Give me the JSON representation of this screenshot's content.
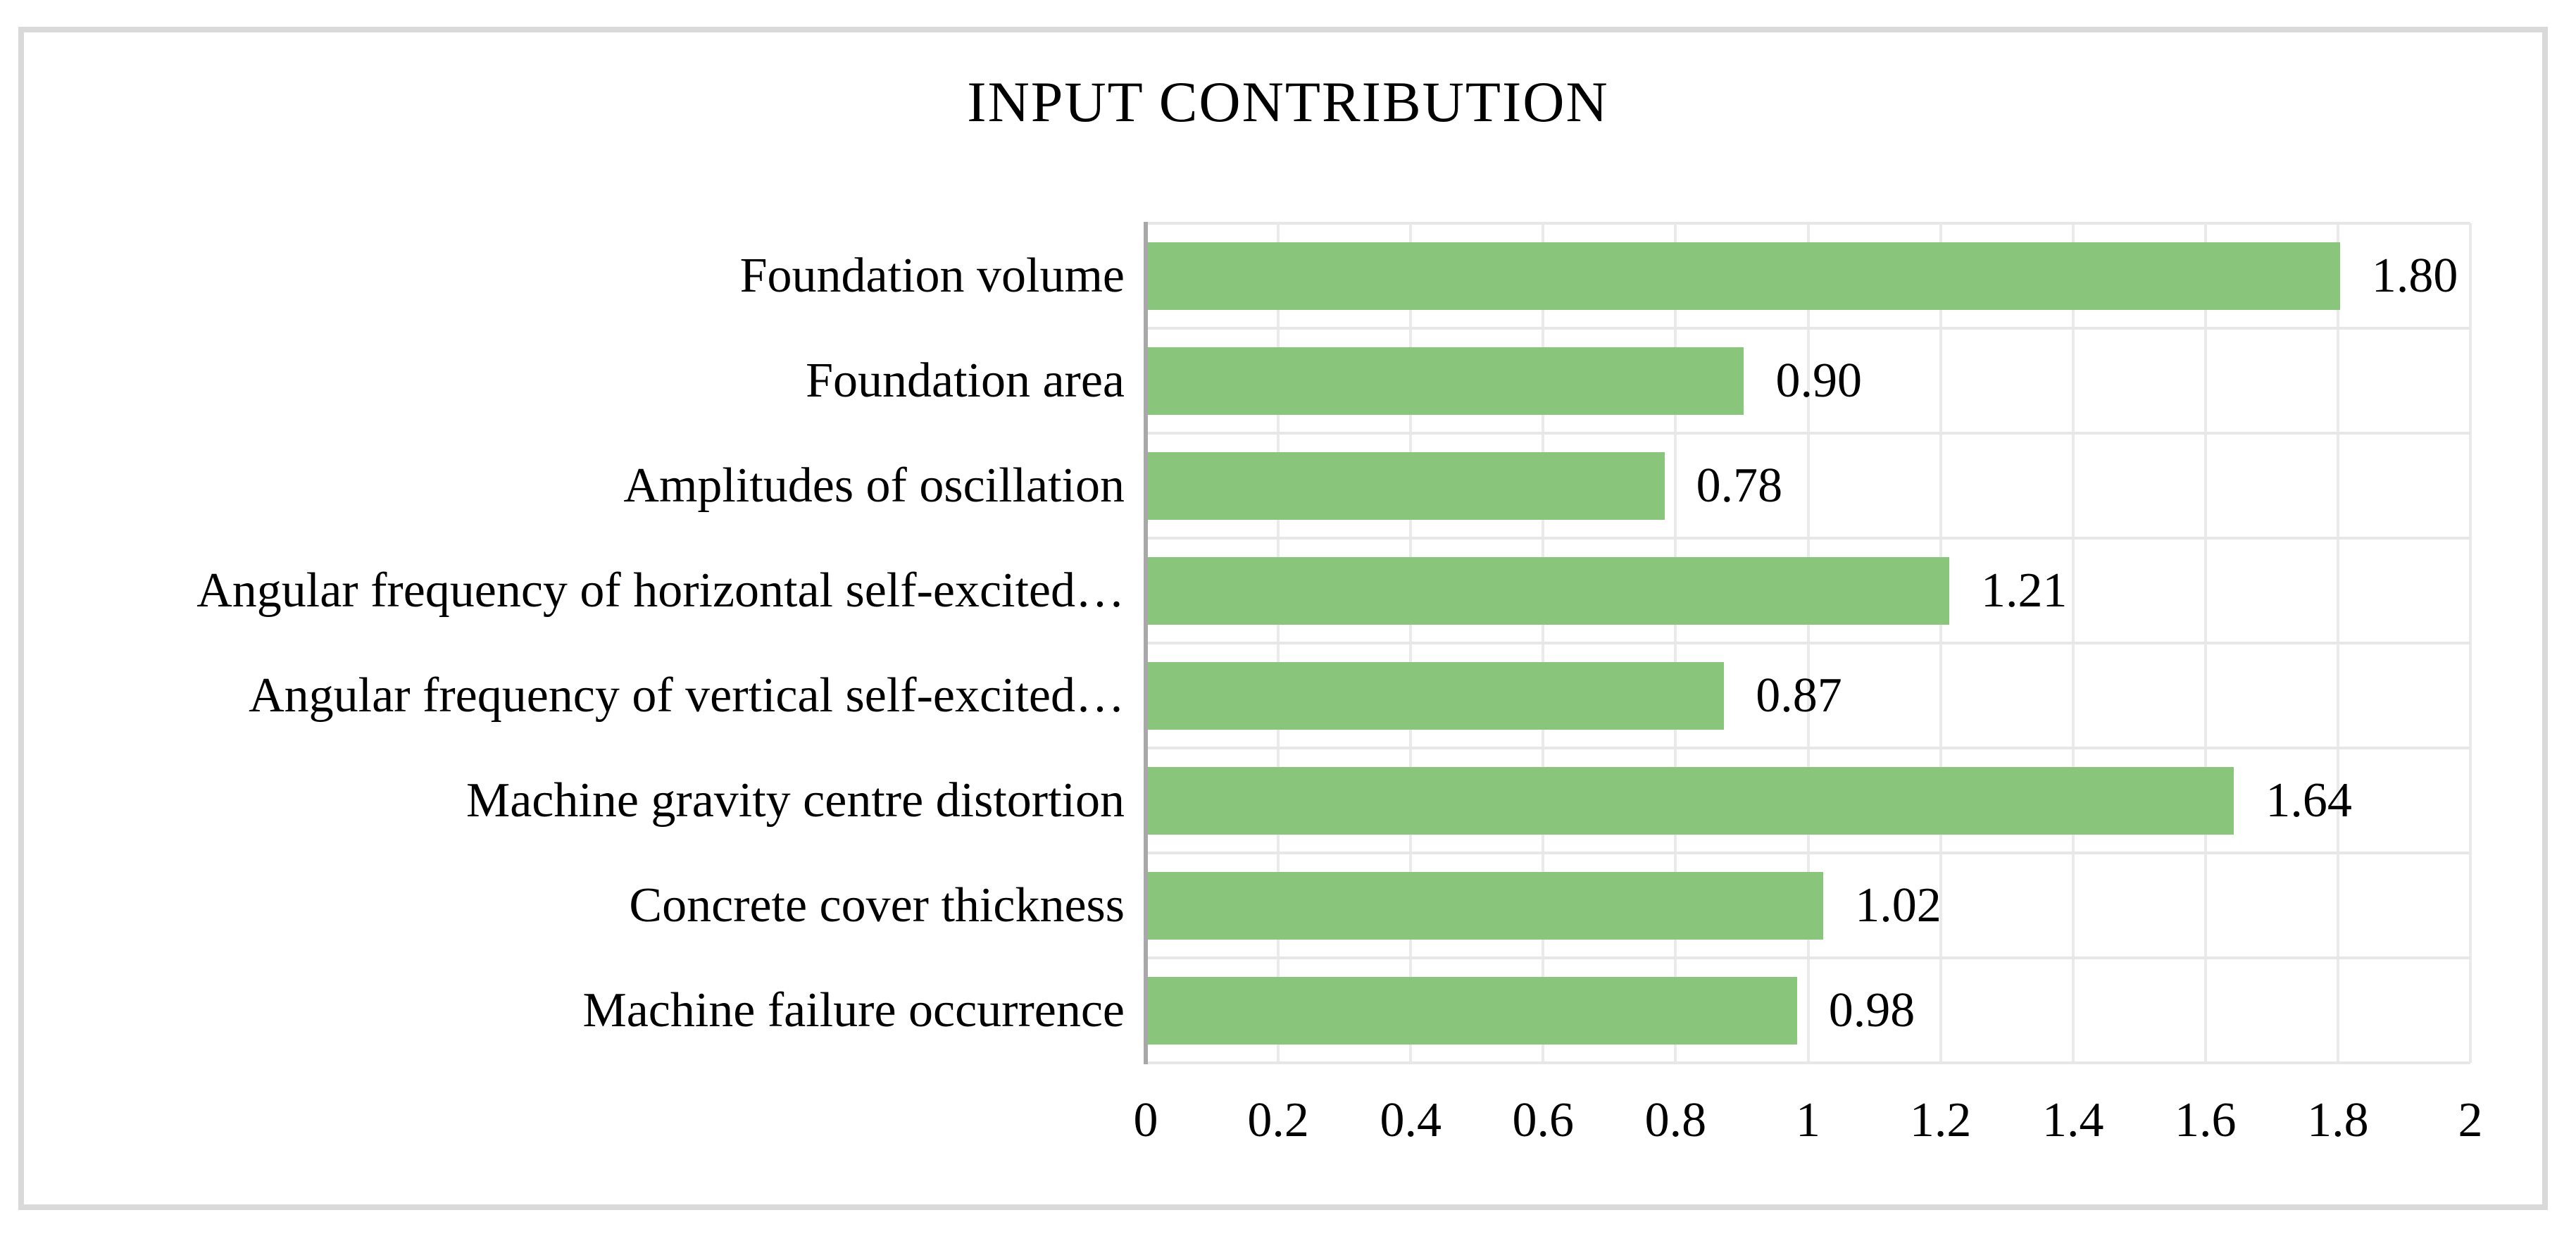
{
  "title": "INPUT CONTRIBUTION",
  "chart_data": {
    "type": "bar",
    "orientation": "horizontal",
    "title": "INPUT CONTRIBUTION",
    "xlabel": "",
    "ylabel": "",
    "categories": [
      "Foundation volume",
      "Foundation area",
      "Amplitudes of oscillation",
      "Angular frequency of horizontal self-excited…",
      "Angular frequency of vertical self-excited…",
      "Machine gravity centre distortion",
      "Concrete cover thickness",
      "Machine failure occurrence"
    ],
    "values": [
      1.8,
      0.9,
      0.78,
      1.21,
      0.87,
      1.64,
      1.02,
      0.98
    ],
    "value_labels": [
      "1.80",
      "0.90",
      "0.78",
      "1.21",
      "0.87",
      "1.64",
      "1.02",
      "0.98"
    ],
    "xlim": [
      0,
      2
    ],
    "x_tick_labels": [
      "0",
      "0.2",
      "0.4",
      "0.6",
      "0.8",
      "1",
      "1.2",
      "1.4",
      "1.6",
      "1.8",
      "2"
    ],
    "grid": true,
    "legend": "none",
    "bar_color": "#8ac57c"
  },
  "colors": {
    "bar": "#8ac57c",
    "gridline": "#eaeaea",
    "axis_line": "#a8a8a8",
    "frame_border": "#d9d9d9",
    "text": "#000000",
    "background": "#ffffff"
  }
}
